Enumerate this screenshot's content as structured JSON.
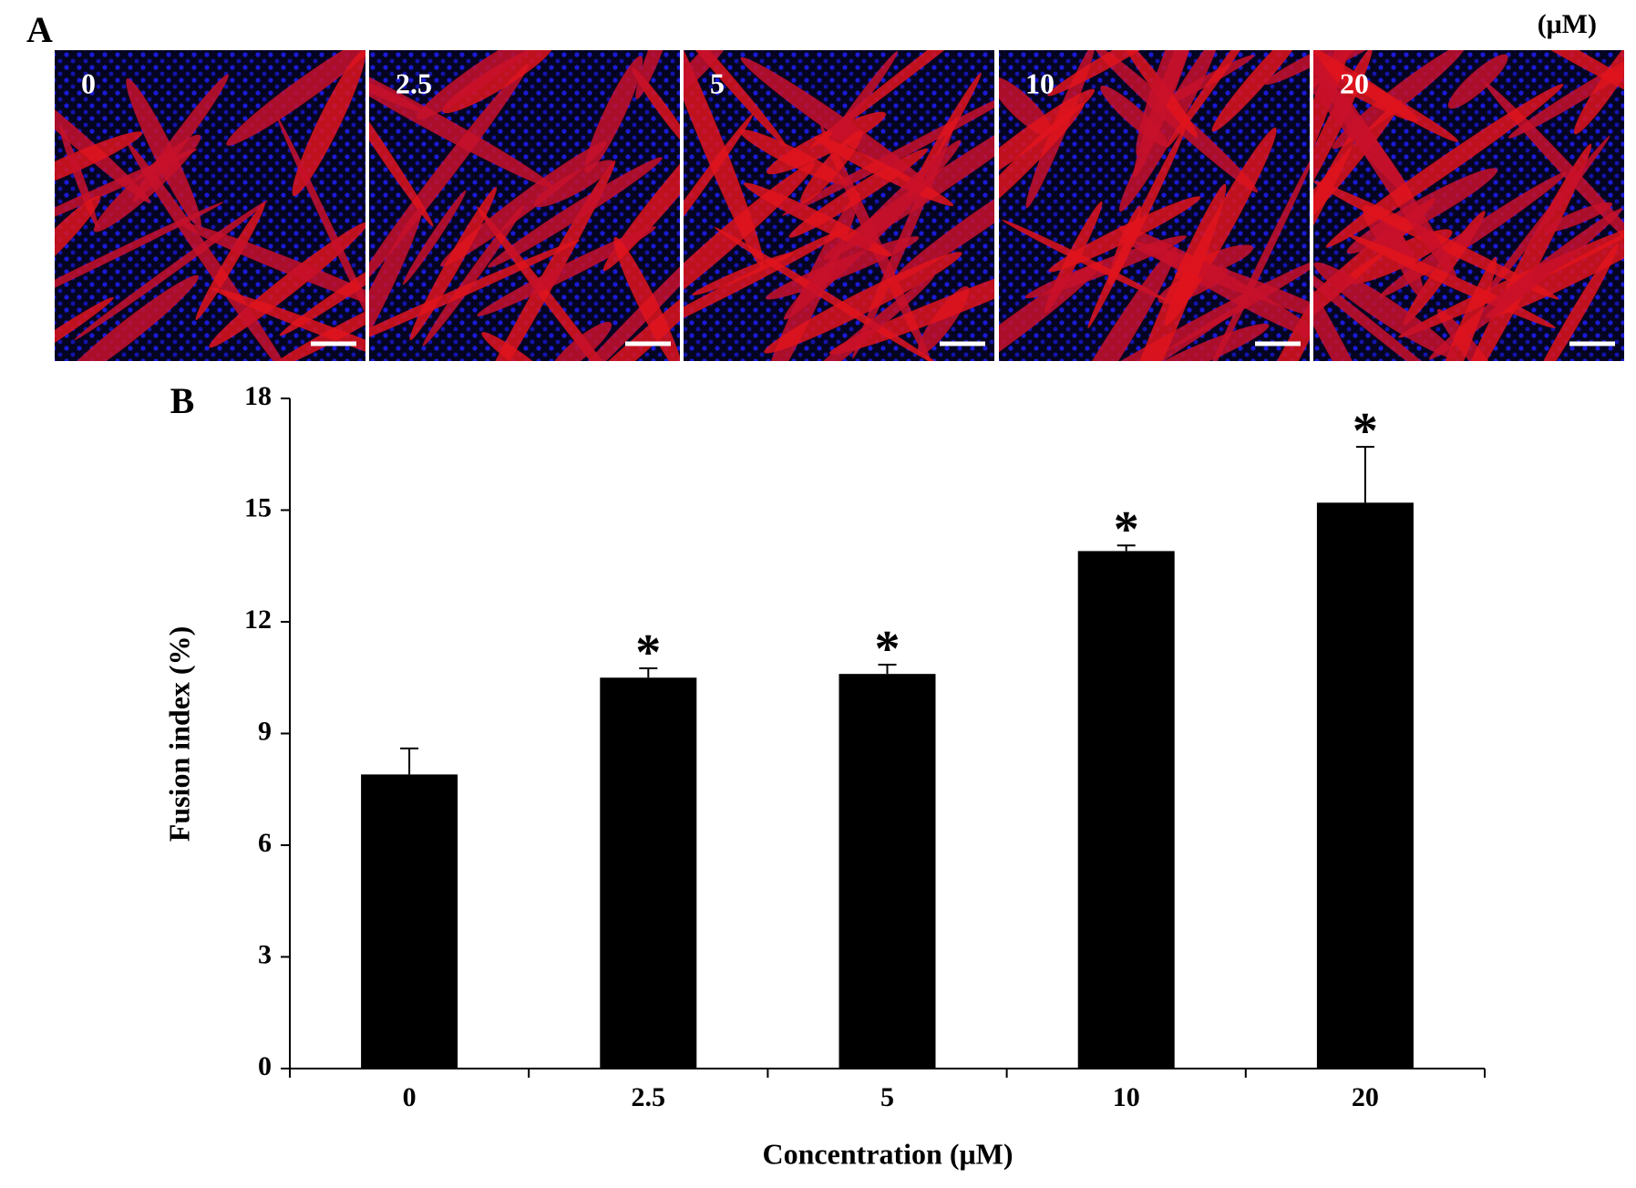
{
  "figure_a": {
    "label": "A",
    "unit": "(μM)",
    "panels": [
      "0",
      "2.5",
      "5",
      "10",
      "20"
    ]
  },
  "chart_data": {
    "type": "bar",
    "panel_label": "B",
    "x_label": "Concentration (μM)",
    "y_label": "Fusion index (%)",
    "categories": [
      "0",
      "2.5",
      "5",
      "10",
      "20"
    ],
    "values": [
      7.9,
      10.5,
      10.6,
      13.9,
      15.2
    ],
    "errors": [
      0.7,
      0.25,
      0.25,
      0.15,
      1.5
    ],
    "significance": [
      null,
      "*",
      "*",
      "*",
      "*"
    ],
    "color": "#000000",
    "ylim": [
      0,
      18
    ],
    "yticks": [
      0,
      3,
      6,
      9,
      12,
      15,
      18
    ],
    "grid": false
  }
}
